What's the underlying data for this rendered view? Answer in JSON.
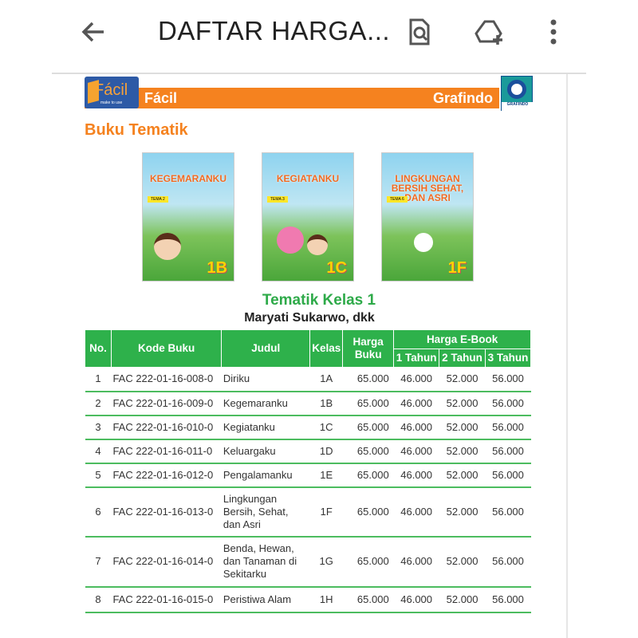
{
  "topbar": {
    "title": "DAFTAR HARGA...",
    "icons": [
      "arrow-back-icon",
      "search-document-icon",
      "add-to-drive-icon",
      "more-vert-icon"
    ]
  },
  "document": {
    "brand_left": "Fácil",
    "brand_left_logo_text": "Fácil",
    "brand_left_logo_sub": "make to use",
    "brand_right": "Grafindo",
    "brand_right_logo_text": "GRAFINDO",
    "section_title": "Buku Tematik",
    "covers": [
      {
        "title": "KEGEMARANKU",
        "tema": "TEMA 2",
        "code": "1B"
      },
      {
        "title": "KEGIATANKU",
        "tema": "TEMA 3",
        "code": "1C"
      },
      {
        "title": "LINGKUNGAN BERSIH SEHAT, DAN ASRI",
        "tema": "TEMA 6",
        "code": "1F"
      }
    ],
    "table_title": "Tematik Kelas 1",
    "author": "Maryati Sukarwo, dkk",
    "colors": {
      "orange": "#f5821f",
      "green": "#2eb14b"
    },
    "headers": {
      "no": "No.",
      "kode": "Kode Buku",
      "judul": "Judul",
      "kelas": "Kelas",
      "harga": "Harga Buku",
      "ebook": "Harga E-Book",
      "t1": "1 Tahun",
      "t2": "2 Tahun",
      "t3": "3 Tahun"
    },
    "rows": [
      {
        "no": "1",
        "kode": "FAC 222-01-16-008-0",
        "judul": "Diriku",
        "kelas": "1A",
        "harga": "65.000",
        "t1": "46.000",
        "t2": "52.000",
        "t3": "56.000"
      },
      {
        "no": "2",
        "kode": "FAC 222-01-16-009-0",
        "judul": "Kegemaranku",
        "kelas": "1B",
        "harga": "65.000",
        "t1": "46.000",
        "t2": "52.000",
        "t3": "56.000"
      },
      {
        "no": "3",
        "kode": "FAC 222-01-16-010-0",
        "judul": "Kegiatanku",
        "kelas": "1C",
        "harga": "65.000",
        "t1": "46.000",
        "t2": "52.000",
        "t3": "56.000"
      },
      {
        "no": "4",
        "kode": "FAC 222-01-16-011-0",
        "judul": "Keluargaku",
        "kelas": "1D",
        "harga": "65.000",
        "t1": "46.000",
        "t2": "52.000",
        "t3": "56.000"
      },
      {
        "no": "5",
        "kode": "FAC 222-01-16-012-0",
        "judul": "Pengalamanku",
        "kelas": "1E",
        "harga": "65.000",
        "t1": "46.000",
        "t2": "52.000",
        "t3": "56.000"
      },
      {
        "no": "6",
        "kode": "FAC 222-01-16-013-0",
        "judul": "Lingkungan Bersih, Sehat, dan Asri",
        "kelas": "1F",
        "harga": "65.000",
        "t1": "46.000",
        "t2": "52.000",
        "t3": "56.000"
      },
      {
        "no": "7",
        "kode": "FAC 222-01-16-014-0",
        "judul": "Benda, Hewan, dan Tanaman di Sekitarku",
        "kelas": "1G",
        "harga": "65.000",
        "t1": "46.000",
        "t2": "52.000",
        "t3": "56.000"
      },
      {
        "no": "8",
        "kode": "FAC 222-01-16-015-0",
        "judul": "Peristiwa Alam",
        "kelas": "1H",
        "harga": "65.000",
        "t1": "46.000",
        "t2": "52.000",
        "t3": "56.000"
      }
    ]
  }
}
